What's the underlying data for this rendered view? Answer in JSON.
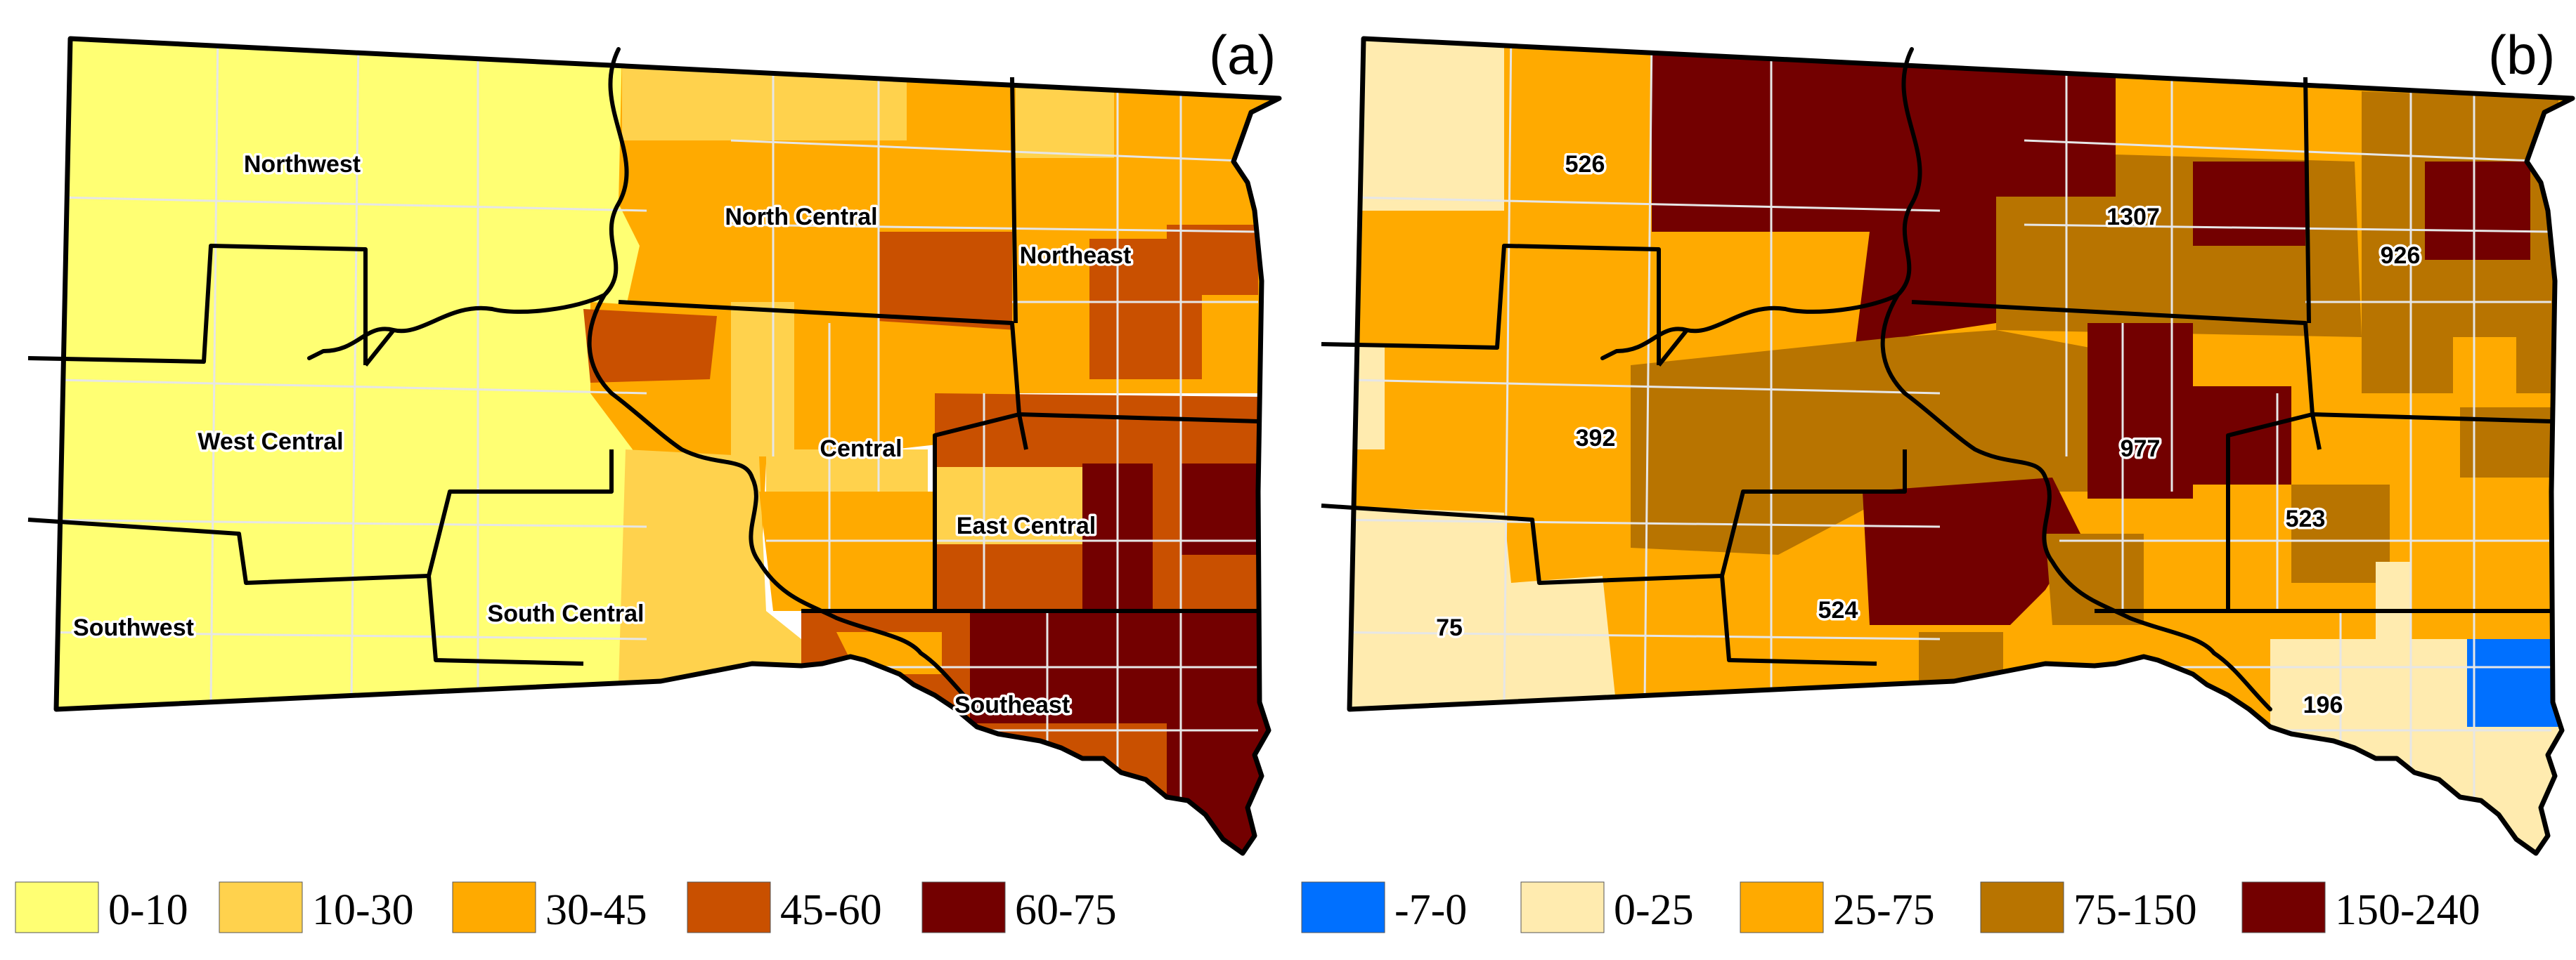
{
  "map_a": {
    "panel_label": "(a)",
    "regions": {
      "northwest": "Northwest",
      "north_central": "North Central",
      "northeast": "Northeast",
      "west_central": "West Central",
      "central": "Central",
      "east_central": "East Central",
      "southwest": "Southwest",
      "south_central": "South Central",
      "southeast": "Southeast"
    },
    "legend": [
      {
        "label": "0-10",
        "color": "#ffff73"
      },
      {
        "label": "10-30",
        "color": "#ffd24d"
      },
      {
        "label": "30-45",
        "color": "#ffaa00"
      },
      {
        "label": "45-60",
        "color": "#c95000"
      },
      {
        "label": "60-75",
        "color": "#730000"
      }
    ]
  },
  "map_b": {
    "panel_label": "(b)",
    "values": {
      "northwest": "526",
      "north_central": "1307",
      "northeast": "926",
      "west_central": "392",
      "central": "977",
      "east_central": "523",
      "southwest": "75",
      "south_central": "524",
      "southeast": "196"
    },
    "legend": [
      {
        "label": "-7-0",
        "color": "#0070ff"
      },
      {
        "label": "0-25",
        "color": "#ffebaf"
      },
      {
        "label": "25-75",
        "color": "#ffaa00"
      },
      {
        "label": "75-150",
        "color": "#b87400"
      },
      {
        "label": "150-240",
        "color": "#730000"
      }
    ]
  }
}
